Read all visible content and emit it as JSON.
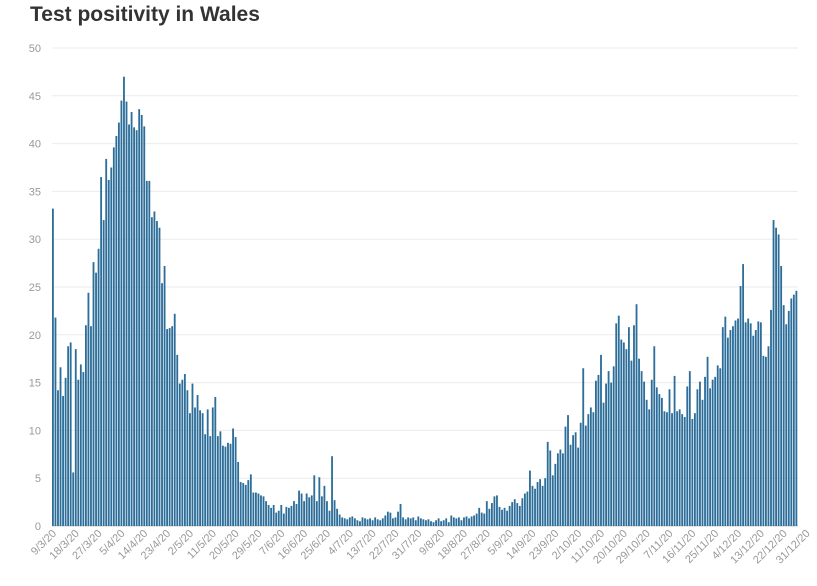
{
  "chart_data": {
    "type": "bar",
    "title": "Test positivity in Wales",
    "xlabel": "",
    "ylabel": "",
    "ylim": [
      0,
      50
    ],
    "yticks": [
      0,
      5,
      10,
      15,
      20,
      25,
      30,
      35,
      40,
      45,
      50
    ],
    "grid": true,
    "legend": "none",
    "bar_color": "#2c6e99",
    "start_date": "2020-03-09",
    "end_date": "2020-12-31",
    "x_tick_labels": [
      "9/3/20",
      "18/3/20",
      "27/3/20",
      "5/4/20",
      "14/4/20",
      "23/4/20",
      "2/5/20",
      "11/5/20",
      "20/5/20",
      "29/5/20",
      "7/6/20",
      "16/6/20",
      "25/6/20",
      "4/7/20",
      "13/7/20",
      "22/7/20",
      "31/7/20",
      "9/8/20",
      "18/8/20",
      "27/8/20",
      "5/9/20",
      "14/9/20",
      "23/9/20",
      "2/10/20",
      "11/10/20",
      "20/10/20",
      "29/10/20",
      "7/11/20",
      "16/11/20",
      "25/11/20",
      "4/12/20",
      "13/12/20",
      "22/12/20",
      "31/12/20"
    ],
    "values": [
      33.2,
      21.8,
      14.2,
      16.6,
      13.6,
      15.5,
      18.8,
      19.2,
      5.6,
      18.5,
      15.3,
      16.9,
      16.1,
      21.0,
      24.4,
      20.9,
      27.6,
      26.5,
      29.0,
      36.5,
      32.0,
      38.4,
      36.2,
      37.5,
      39.6,
      40.8,
      42.2,
      44.5,
      47.0,
      44.4,
      42.0,
      43.3,
      41.7,
      41.4,
      43.6,
      43.0,
      41.8,
      36.1,
      36.1,
      32.3,
      32.9,
      31.9,
      31.2,
      25.4,
      27.2,
      20.6,
      20.7,
      20.9,
      22.2,
      17.9,
      14.9,
      15.3,
      15.9,
      14.2,
      11.8,
      14.9,
      12.4,
      13.7,
      12.1,
      11.8,
      9.6,
      12.2,
      9.4,
      12.4,
      13.5,
      9.4,
      9.9,
      8.4,
      8.3,
      8.7,
      8.6,
      10.2,
      9.3,
      6.7,
      4.6,
      4.5,
      4.3,
      4.8,
      5.4,
      3.5,
      3.5,
      3.4,
      3.2,
      3.1,
      2.6,
      2.2,
      1.9,
      2.2,
      1.4,
      1.6,
      2.2,
      1.3,
      2.0,
      1.9,
      2.1,
      2.6,
      2.3,
      3.7,
      3.4,
      2.6,
      3.4,
      3.0,
      3.2,
      5.3,
      2.6,
      5.1,
      3.1,
      4.2,
      2.6,
      1.6,
      7.3,
      2.7,
      1.8,
      1.2,
      0.9,
      0.8,
      0.7,
      0.9,
      1.0,
      0.8,
      0.6,
      0.5,
      0.9,
      0.8,
      0.7,
      0.8,
      0.6,
      0.9,
      0.7,
      0.6,
      0.8,
      1.1,
      1.5,
      1.4,
      0.8,
      0.9,
      1.5,
      2.3,
      0.9,
      0.7,
      0.9,
      0.8,
      0.9,
      0.6,
      1.0,
      0.8,
      0.7,
      0.6,
      0.7,
      0.5,
      0.4,
      0.6,
      0.8,
      0.5,
      0.6,
      0.8,
      0.4,
      1.1,
      0.9,
      0.8,
      0.9,
      0.6,
      0.9,
      1.0,
      0.8,
      1.0,
      1.1,
      1.3,
      1.9,
      1.4,
      1.3,
      2.6,
      1.8,
      2.4,
      3.1,
      3.2,
      2.0,
      1.7,
      1.9,
      1.6,
      2.1,
      2.5,
      2.8,
      2.4,
      2.1,
      2.9,
      3.4,
      3.6,
      5.8,
      4.2,
      3.9,
      4.6,
      4.9,
      4.2,
      5.0,
      8.8,
      7.9,
      5.3,
      6.5,
      7.6,
      8.0,
      7.6,
      10.4,
      11.6,
      8.5,
      9.5,
      9.8,
      8.2,
      10.8,
      16.5,
      10.5,
      11.7,
      12.4,
      11.9,
      15.2,
      15.8,
      17.9,
      12.9,
      14.9,
      16.2,
      15.0,
      16.7,
      21.2,
      22.0,
      19.5,
      19.2,
      18.5,
      20.8,
      17.3,
      21.0,
      23.2,
      17.5,
      16.2,
      15.1,
      13.2,
      12.2,
      15.3,
      18.8,
      14.5,
      13.8,
      13.4,
      12.0,
      11.9,
      14.3,
      11.8,
      15.7,
      12.0,
      12.2,
      11.7,
      11.4,
      14.6,
      16.2,
      11.2,
      11.8,
      14.3,
      15.1,
      13.2,
      15.6,
      17.7,
      14.4,
      15.3,
      15.6,
      16.8,
      16.5,
      20.8,
      21.9,
      19.7,
      20.5,
      20.9,
      21.5,
      21.7,
      25.1,
      27.4,
      21.3,
      21.7,
      21.2,
      19.9,
      20.5,
      21.4,
      21.3,
      17.8,
      17.7,
      18.8,
      22.6,
      32.0,
      31.2,
      30.5,
      27.2,
      23.1,
      21.1,
      22.5,
      23.8,
      24.2,
      24.6
    ]
  }
}
